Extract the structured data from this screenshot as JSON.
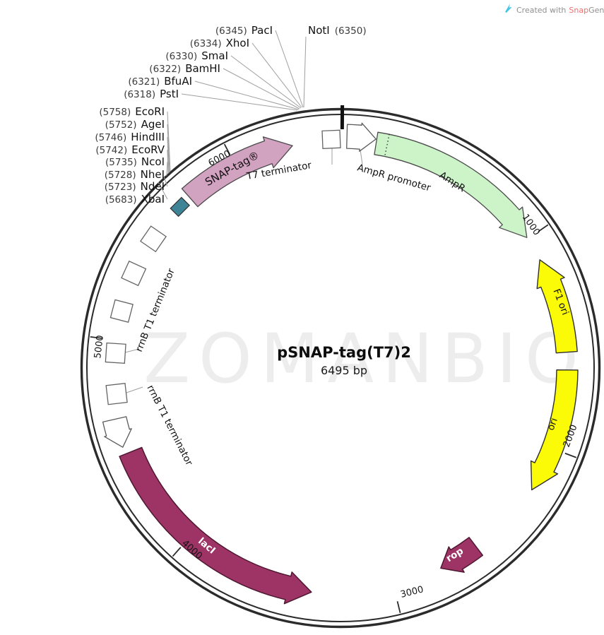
{
  "header": {
    "created_with": "Created with",
    "brand": "Snap",
    "brand2": "Gene®"
  },
  "plasmid": {
    "name": "pSNAP-tag(T7)2",
    "size": "6495 bp"
  },
  "watermark": "ZOMANBIO",
  "scale": [
    "1000",
    "2000",
    "3000",
    "4000",
    "5000",
    "6000"
  ],
  "features": {
    "snap_tag": "SNAP-tag®",
    "t7_terminator": "T7 terminator",
    "ampr_promoter": "AmpR promoter",
    "ampr": "AmpR",
    "f1_ori": "F1 ori",
    "ori": "ori",
    "rop": "rop",
    "laci": "lacI",
    "rrnb1": "rrnB T1 terminator",
    "rrnb2": "rrnB T1 terminator"
  },
  "restriction_sites": [
    {
      "number": "(6345)",
      "name": "PacI"
    },
    {
      "number": "(6334)",
      "name": "XhoI"
    },
    {
      "number": "(6330)",
      "name": "SmaI"
    },
    {
      "number": "(6322)",
      "name": "BamHI"
    },
    {
      "number": "(6321)",
      "name": "BfuAI"
    },
    {
      "number": "(6318)",
      "name": "PstI"
    },
    {
      "number": "(6350)",
      "name": "NotI"
    },
    {
      "number": "(5758)",
      "name": "EcoRI"
    },
    {
      "number": "(5752)",
      "name": "AgeI"
    },
    {
      "number": "(5746)",
      "name": "HindIII"
    },
    {
      "number": "(5742)",
      "name": "EcoRV"
    },
    {
      "number": "(5735)",
      "name": "NcoI"
    },
    {
      "number": "(5728)",
      "name": "NheI"
    },
    {
      "number": "(5723)",
      "name": "NdeI"
    },
    {
      "number": "(5683)",
      "name": "XbaI"
    }
  ],
  "colors": {
    "backbone": "#2b2b2b",
    "cds_pink": "#d2a2c1",
    "cds_green": "#ccf4c8",
    "ori_yellow": "#fbfb07",
    "gene_maroon": "#9e3366",
    "protein_bind_teal": "#3f8496",
    "white_feature": "#ffffff",
    "leader_line": "#9f9f9f",
    "logo_cyan": "#45c5e8"
  }
}
